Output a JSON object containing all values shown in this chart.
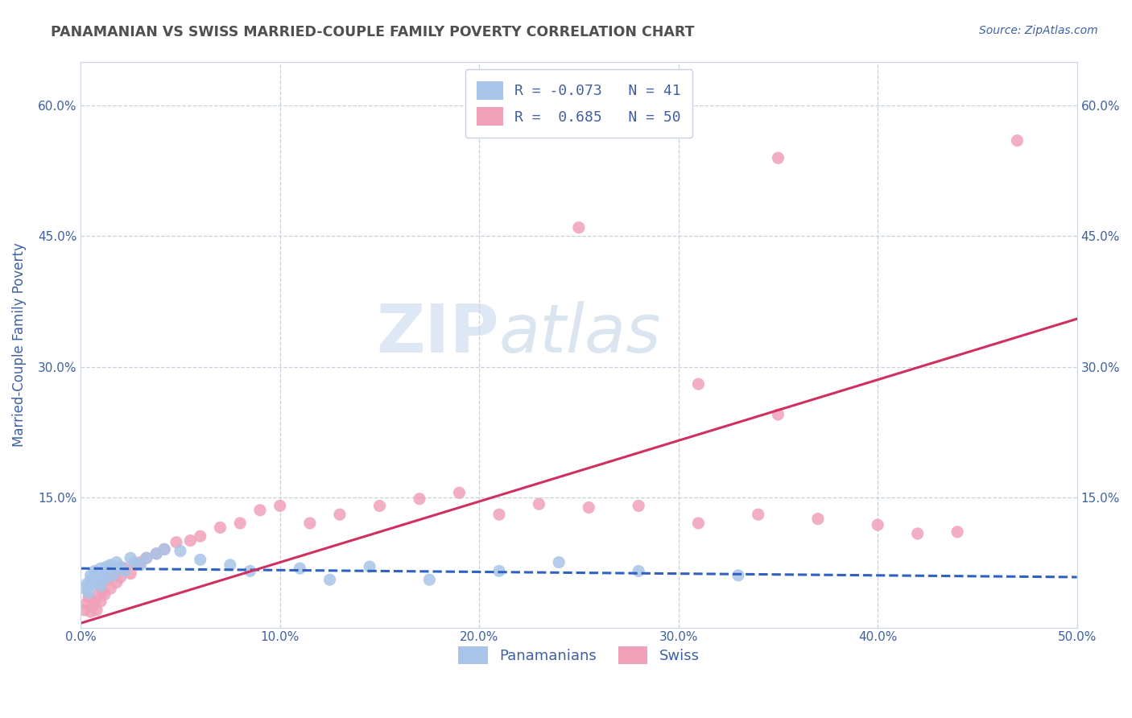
{
  "title": "PANAMANIAN VS SWISS MARRIED-COUPLE FAMILY POVERTY CORRELATION CHART",
  "source": "Source: ZipAtlas.com",
  "ylabel": "Married-Couple Family Poverty",
  "xlim": [
    0.0,
    0.5
  ],
  "ylim": [
    0.0,
    0.65
  ],
  "xticks": [
    0.0,
    0.1,
    0.2,
    0.3,
    0.4,
    0.5
  ],
  "xticklabels": [
    "0.0%",
    "10.0%",
    "20.0%",
    "30.0%",
    "40.0%",
    "50.0%"
  ],
  "yticks": [
    0.0,
    0.15,
    0.3,
    0.45,
    0.6
  ],
  "yticklabels": [
    "",
    "15.0%",
    "30.0%",
    "45.0%",
    "60.0%"
  ],
  "watermark_zip": "ZIP",
  "watermark_atlas": "atlas",
  "legend_R1": "-0.073",
  "legend_N1": "41",
  "legend_R2": "0.685",
  "legend_N2": "50",
  "color_blue": "#a8c4e8",
  "color_pink": "#f0a0b8",
  "line_color_blue": "#3060c0",
  "line_color_pink": "#d03060",
  "title_color": "#505050",
  "axis_label_color": "#4060a0",
  "tick_color": "#4060a0",
  "grid_color": "#c8d0dc",
  "legend_text_color": "#4060a0",
  "blue_scatter_x": [
    0.002,
    0.003,
    0.004,
    0.005,
    0.005,
    0.006,
    0.007,
    0.007,
    0.008,
    0.009,
    0.01,
    0.01,
    0.011,
    0.012,
    0.013,
    0.013,
    0.014,
    0.015,
    0.016,
    0.017,
    0.018,
    0.02,
    0.022,
    0.025,
    0.027,
    0.03,
    0.033,
    0.038,
    0.042,
    0.05,
    0.06,
    0.075,
    0.085,
    0.11,
    0.125,
    0.145,
    0.175,
    0.21,
    0.24,
    0.28,
    0.33
  ],
  "blue_scatter_y": [
    0.045,
    0.05,
    0.04,
    0.055,
    0.06,
    0.05,
    0.058,
    0.065,
    0.052,
    0.06,
    0.048,
    0.068,
    0.055,
    0.062,
    0.058,
    0.07,
    0.065,
    0.072,
    0.06,
    0.068,
    0.075,
    0.07,
    0.065,
    0.08,
    0.075,
    0.072,
    0.08,
    0.085,
    0.09,
    0.088,
    0.078,
    0.072,
    0.065,
    0.068,
    0.055,
    0.07,
    0.055,
    0.065,
    0.075,
    0.065,
    0.06
  ],
  "pink_scatter_x": [
    0.002,
    0.003,
    0.004,
    0.005,
    0.006,
    0.007,
    0.008,
    0.009,
    0.01,
    0.011,
    0.012,
    0.013,
    0.015,
    0.017,
    0.018,
    0.02,
    0.022,
    0.025,
    0.028,
    0.03,
    0.033,
    0.038,
    0.042,
    0.048,
    0.055,
    0.06,
    0.07,
    0.08,
    0.09,
    0.1,
    0.115,
    0.13,
    0.15,
    0.17,
    0.19,
    0.21,
    0.23,
    0.255,
    0.28,
    0.31,
    0.34,
    0.37,
    0.4,
    0.42,
    0.44,
    0.31,
    0.35,
    0.25,
    0.35,
    0.47
  ],
  "pink_scatter_y": [
    0.02,
    0.028,
    0.035,
    0.018,
    0.025,
    0.03,
    0.02,
    0.038,
    0.03,
    0.042,
    0.038,
    0.055,
    0.045,
    0.06,
    0.052,
    0.058,
    0.068,
    0.062,
    0.072,
    0.075,
    0.08,
    0.085,
    0.09,
    0.098,
    0.1,
    0.105,
    0.115,
    0.12,
    0.135,
    0.14,
    0.12,
    0.13,
    0.14,
    0.148,
    0.155,
    0.13,
    0.142,
    0.138,
    0.14,
    0.12,
    0.13,
    0.125,
    0.118,
    0.108,
    0.11,
    0.28,
    0.245,
    0.46,
    0.54,
    0.56
  ],
  "blue_line_x": [
    0.0,
    0.5
  ],
  "blue_line_y": [
    0.068,
    0.058
  ],
  "pink_line_x": [
    0.0,
    0.5
  ],
  "pink_line_y": [
    0.005,
    0.355
  ],
  "background_color": "#ffffff",
  "plot_bg_color": "#ffffff",
  "legend_label1": "Panamanians",
  "legend_label2": "Swiss"
}
